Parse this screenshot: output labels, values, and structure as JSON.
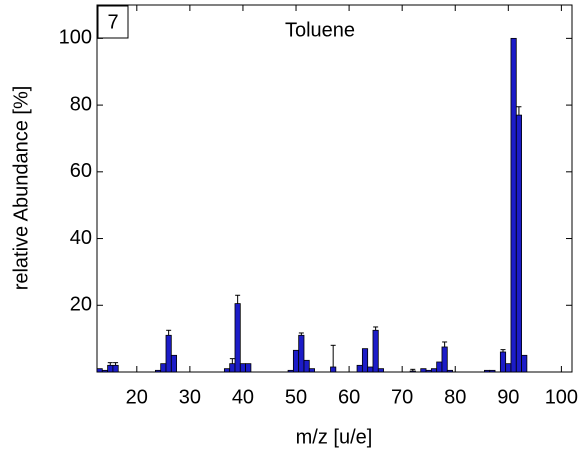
{
  "chart_data": {
    "type": "bar",
    "title": "Toluene",
    "panel_label": "7",
    "x_label": "m/z [u/e]",
    "y_label": "relative Abundance [%]",
    "x": [
      13,
      14,
      15,
      16,
      24,
      25,
      26,
      27,
      37,
      38,
      39,
      40,
      41,
      49,
      50,
      51,
      52,
      53,
      57,
      62,
      63,
      64,
      65,
      66,
      72,
      74,
      75,
      76,
      77,
      78,
      79,
      86,
      87,
      89,
      90,
      91,
      92,
      93
    ],
    "values": [
      1,
      0.5,
      2,
      2,
      0.5,
      2.5,
      11,
      5,
      1,
      2.5,
      20.5,
      2.5,
      2.5,
      0.5,
      6.5,
      11,
      3.5,
      1,
      1.5,
      2,
      7,
      1.5,
      12.5,
      1,
      0.3,
      1,
      0.5,
      1,
      3,
      7.5,
      0.5,
      0.5,
      0.5,
      6,
      2.5,
      100,
      77,
      5
    ],
    "errors": [
      null,
      null,
      0.8,
      0.8,
      null,
      null,
      1.5,
      null,
      null,
      1.5,
      2.5,
      null,
      null,
      null,
      null,
      0.7,
      null,
      null,
      6.5,
      null,
      null,
      null,
      1,
      null,
      0.5,
      null,
      null,
      null,
      null,
      1.5,
      null,
      null,
      null,
      0.7,
      null,
      null,
      2.5,
      null
    ],
    "color": "#1c1cc8",
    "xlim": [
      12.5,
      102
    ],
    "ylim": [
      0,
      110
    ],
    "xticks": [
      20,
      30,
      40,
      50,
      60,
      70,
      80,
      90,
      100
    ],
    "yticks": [
      20,
      40,
      60,
      80,
      100
    ]
  }
}
